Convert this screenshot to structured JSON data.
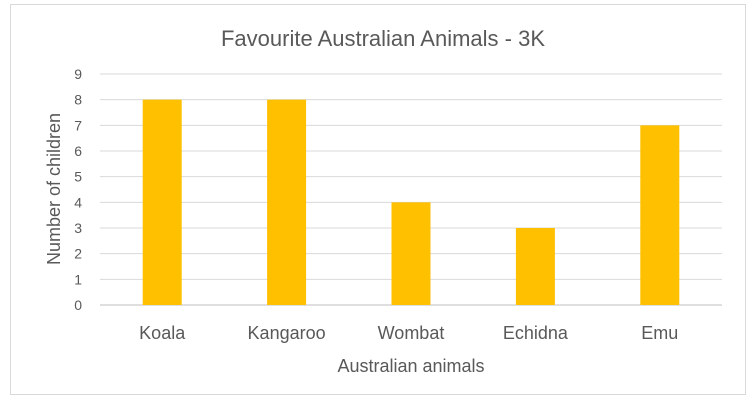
{
  "chart_data": {
    "type": "bar",
    "title": "Favourite Australian Animals - 3K",
    "xlabel": "Australian animals",
    "ylabel": "Number of children",
    "categories": [
      "Koala",
      "Kangaroo",
      "Wombat",
      "Echidna",
      "Emu"
    ],
    "values": [
      8,
      8,
      4,
      3,
      7
    ],
    "ylim": [
      0,
      9
    ],
    "yticks": [
      "0",
      "1",
      "2",
      "3",
      "4",
      "5",
      "6",
      "7",
      "8",
      "9"
    ],
    "grid": true,
    "legend": "none",
    "bar_color": "#FFC000"
  }
}
